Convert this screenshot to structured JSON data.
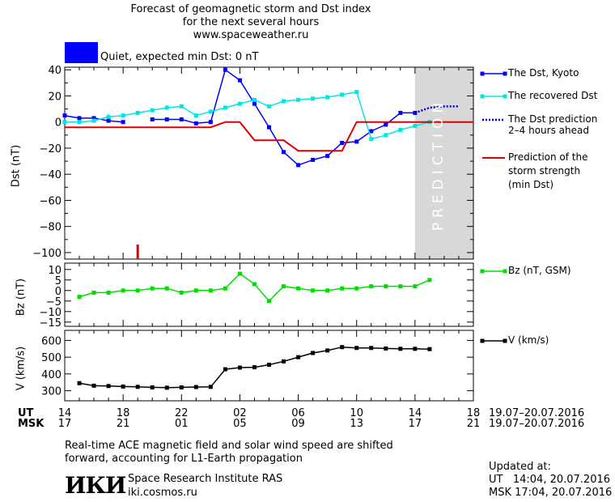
{
  "header": {
    "title_line1": "Forecast of geomagnetic storm and Dst index",
    "title_line2": "for the next several hours",
    "title_line3": "www.spaceweather.ru"
  },
  "status": {
    "color": "#0000ff",
    "text": "Quiet, expected min Dst: 0 nT"
  },
  "colors": {
    "dst_kyoto": "#0000ff",
    "dst_recovered": "#00e5e5",
    "dst_prediction": "#0000cc",
    "storm_strength": "#dd0000",
    "bz": "#00dd00",
    "v": "#000000",
    "prediction_band": "#d8d8d8"
  },
  "prediction_label": "PREDICTION",
  "legend": {
    "kyoto": "The Dst, Kyoto",
    "recovered": "The recovered Dst",
    "prediction_l1": "The Dst prediction",
    "prediction_l2": "2–4 hours ahead",
    "strength_l1": "Prediction of the",
    "strength_l2": "storm strength",
    "strength_l3": "(min Dst)",
    "bz": "Bz (nT, GSM)",
    "v": "V (km/s)"
  },
  "time_axis": {
    "ut_label": "UT",
    "msk_label": "MSK",
    "ut_ticks": [
      "14",
      "18",
      "22",
      "02",
      "06",
      "10",
      "14",
      "18"
    ],
    "msk_ticks": [
      "17",
      "21",
      "01",
      "05",
      "09",
      "13",
      "17",
      "21"
    ],
    "ut_range": "19.07–20.07.2016",
    "msk_range": "19.07–20.07.2016"
  },
  "footer": {
    "note_l1": "Real-time ACE magnetic field and solar wind speed are shifted",
    "note_l2": "forward, accounting for L1-Earth propagation",
    "org_logo": "ИКИ",
    "org_name": "Space Research Institute RAS",
    "org_site": "iki.cosmos.ru",
    "updated_label": "Updated at:",
    "updated_ut": "UT   14:04, 20.07.2016",
    "updated_msk": "MSK 17:04, 20.07.2016"
  },
  "chart_data": [
    {
      "type": "line",
      "ylabel": "Dst (nT)",
      "xlim": [
        14,
        42
      ],
      "ylim": [
        -105,
        42
      ],
      "yticks": [
        40,
        20,
        0,
        -20,
        -40,
        -60,
        -80,
        -100
      ],
      "prediction_from": 38,
      "series": [
        {
          "name": "The Dst, Kyoto",
          "key": "kyoto",
          "x": [
            14,
            15,
            16,
            17,
            18,
            20,
            21,
            22,
            23,
            24,
            25,
            26,
            27,
            28,
            29,
            30,
            31,
            32,
            33,
            34,
            35,
            36,
            37,
            38
          ],
          "y": [
            5,
            3,
            3,
            1,
            0,
            2,
            2,
            2,
            -1,
            0,
            40,
            32,
            14,
            -4,
            -23,
            -33,
            -29,
            -26,
            -16,
            -15,
            -7,
            -2,
            7,
            7
          ],
          "gap_after_index": 4
        },
        {
          "name": "The recovered Dst",
          "key": "recovered",
          "x": [
            14,
            15,
            16,
            17,
            18,
            19,
            20,
            21,
            22,
            23,
            24,
            25,
            26,
            27,
            28,
            29,
            30,
            31,
            32,
            33,
            34,
            35,
            36,
            37,
            38,
            39
          ],
          "y": [
            0,
            0,
            1,
            4,
            5,
            7,
            9,
            11,
            12,
            5,
            8,
            11,
            14,
            17,
            12,
            16,
            17,
            18,
            19,
            21,
            23,
            -13,
            -10,
            -6,
            -3,
            0
          ]
        },
        {
          "name": "The Dst prediction 2–4 hours ahead",
          "key": "prediction",
          "x": [
            38,
            39,
            40,
            41
          ],
          "y": [
            7,
            11,
            12,
            12
          ]
        },
        {
          "name": "Prediction of the storm strength (min Dst)",
          "key": "strength",
          "x": [
            14,
            24,
            25,
            26,
            27,
            28,
            29,
            30,
            31,
            32,
            33,
            34,
            35,
            36,
            42
          ],
          "y": [
            -4,
            -4,
            0,
            0,
            -14,
            -14,
            -14,
            -22,
            -22,
            -22,
            -22,
            0,
            0,
            0,
            0
          ]
        }
      ],
      "marker_tick_x": 19
    },
    {
      "type": "line",
      "ylabel": "Bz (nT)",
      "xlim": [
        14,
        42
      ],
      "ylim": [
        -17,
        13
      ],
      "yticks": [
        10,
        5,
        0,
        -5,
        -10,
        -15
      ],
      "series": [
        {
          "name": "Bz (nT, GSM)",
          "key": "bz",
          "x": [
            15,
            16,
            17,
            18,
            19,
            20,
            21,
            22,
            23,
            24,
            25,
            26,
            27,
            28,
            29,
            30,
            31,
            32,
            33,
            34,
            35,
            36,
            37,
            38,
            39
          ],
          "y": [
            -3,
            -1,
            -1,
            0,
            0,
            1,
            1,
            -1,
            0,
            0,
            1,
            8,
            3,
            -5,
            2,
            1,
            0,
            0,
            1,
            1,
            2,
            2,
            2,
            2,
            5
          ]
        }
      ]
    },
    {
      "type": "line",
      "ylabel": "V (km/s)",
      "xlim": [
        14,
        42
      ],
      "ylim": [
        240,
        660
      ],
      "yticks": [
        600,
        500,
        400,
        300
      ],
      "series": [
        {
          "name": "V (km/s)",
          "key": "v",
          "x": [
            15,
            16,
            17,
            18,
            19,
            20,
            21,
            22,
            23,
            24,
            25,
            26,
            27,
            28,
            29,
            30,
            31,
            32,
            33,
            34,
            35,
            36,
            37,
            38,
            39
          ],
          "y": [
            345,
            330,
            328,
            325,
            323,
            320,
            318,
            320,
            322,
            323,
            428,
            438,
            440,
            455,
            475,
            500,
            525,
            540,
            560,
            555,
            555,
            552,
            550,
            550,
            548
          ]
        }
      ]
    }
  ]
}
